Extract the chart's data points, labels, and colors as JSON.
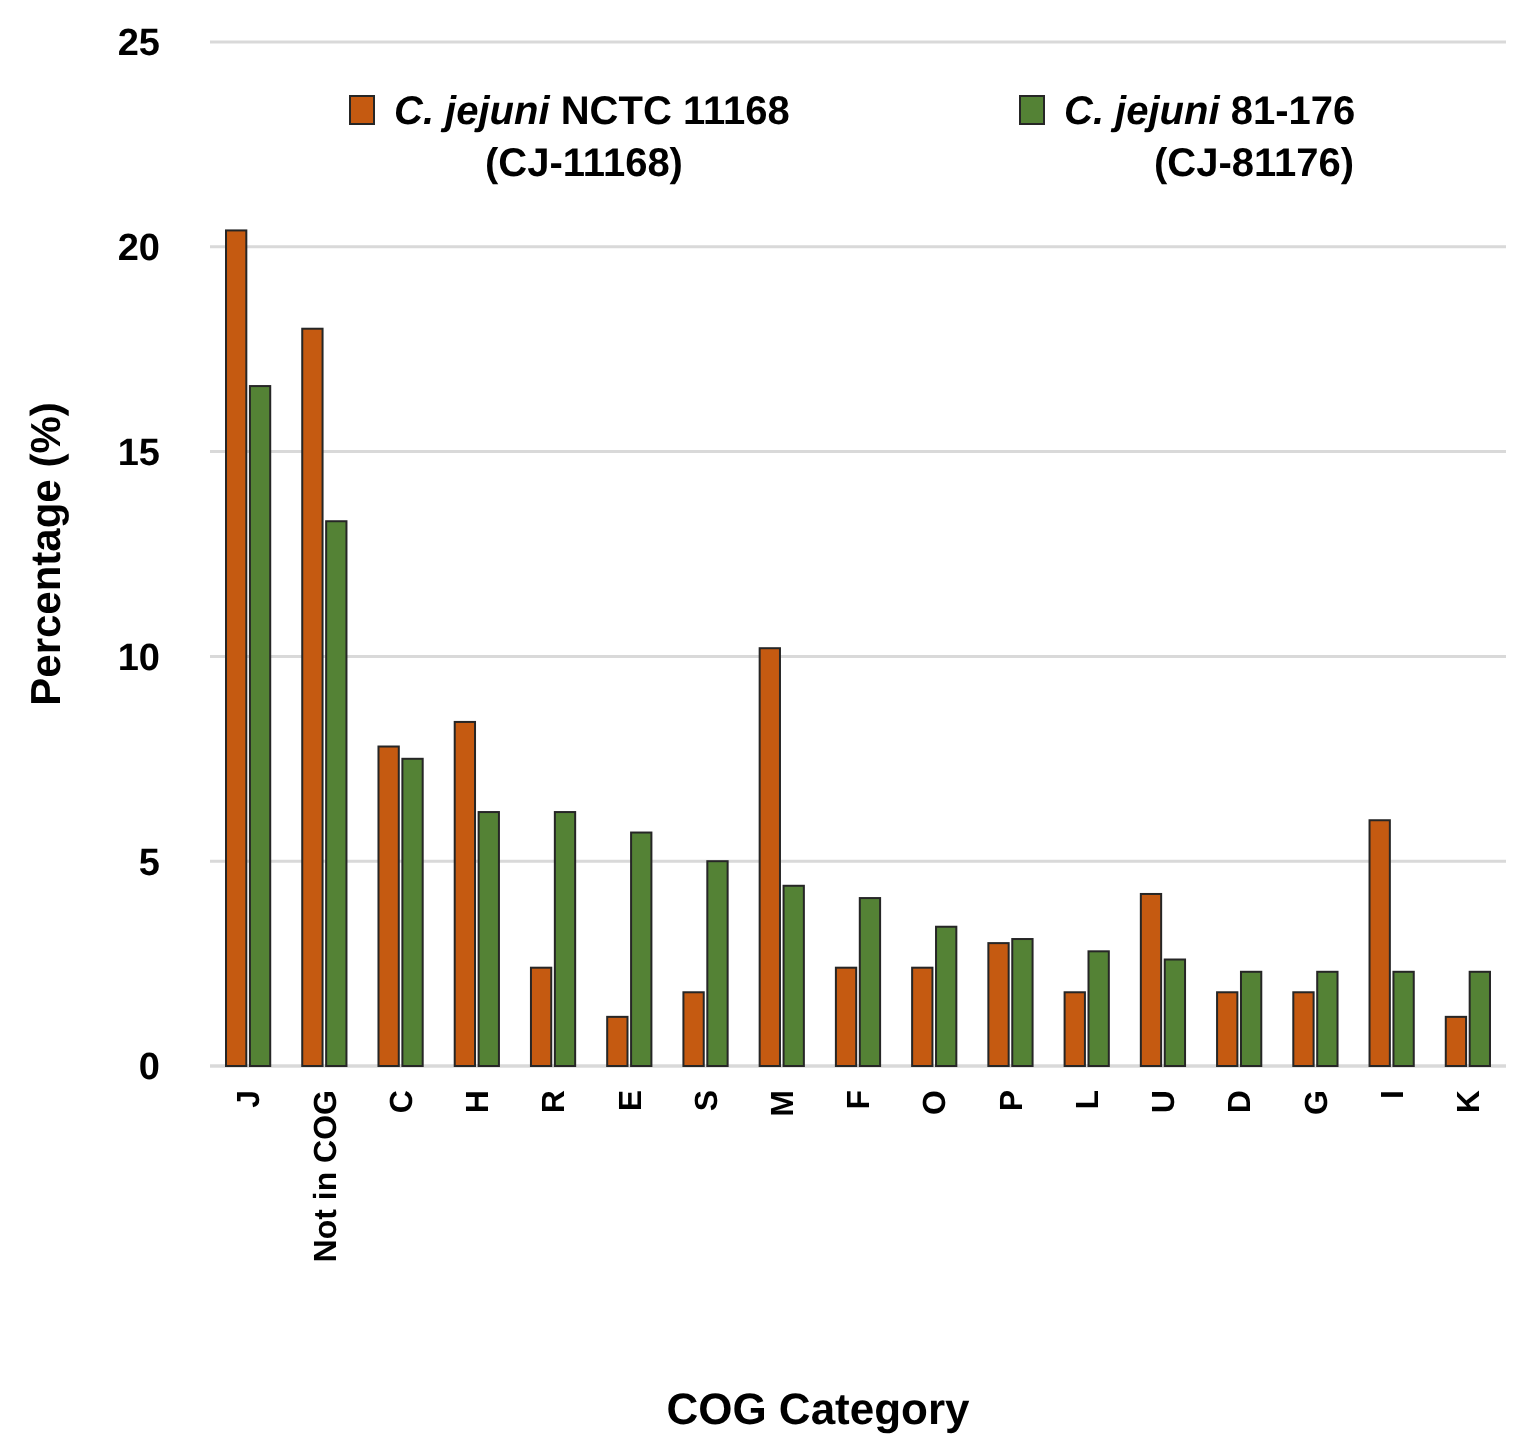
{
  "chart_data": {
    "type": "bar",
    "xlabel": "COG Category",
    "ylabel": "Percentage (%)",
    "categories": [
      "J",
      "Not in COG",
      "C",
      "H",
      "R",
      "E",
      "S",
      "M",
      "F",
      "O",
      "P",
      "L",
      "U",
      "D",
      "G",
      "I",
      "K"
    ],
    "series": [
      {
        "name": "C. jejuni NCTC 11168 (CJ-11168)",
        "color": "#c55a11",
        "values": [
          20.4,
          18.0,
          7.8,
          8.4,
          2.4,
          1.2,
          1.8,
          10.2,
          2.4,
          2.4,
          3.0,
          1.8,
          4.2,
          1.8,
          1.8,
          6.0,
          1.2
        ]
      },
      {
        "name": "C. jejuni 81-176 (CJ-81176)",
        "color": "#548235",
        "values": [
          16.6,
          13.3,
          7.5,
          6.2,
          6.2,
          5.7,
          5.0,
          4.4,
          4.1,
          3.4,
          3.1,
          2.8,
          2.6,
          2.3,
          2.3,
          2.3,
          2.3
        ]
      }
    ],
    "ylim": [
      0,
      25
    ],
    "yticks": [
      0,
      5,
      10,
      15,
      20,
      25
    ],
    "grid": "y",
    "legend": "top right"
  }
}
